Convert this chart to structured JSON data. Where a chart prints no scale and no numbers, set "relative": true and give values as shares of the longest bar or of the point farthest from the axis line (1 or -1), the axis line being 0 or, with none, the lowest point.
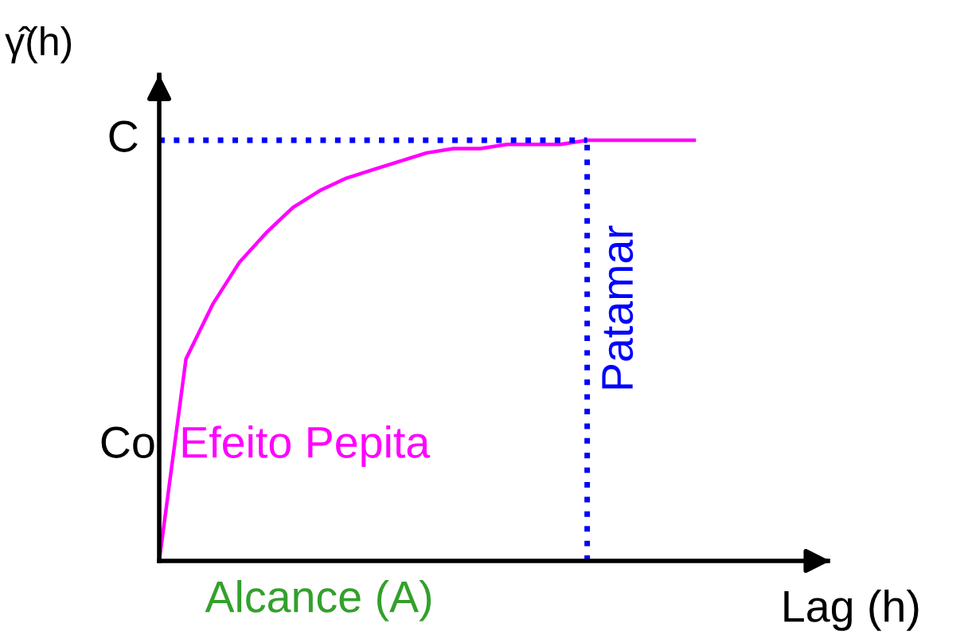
{
  "chart_data": {
    "type": "line",
    "relative": true,
    "ylabel": "γ̂(h)",
    "xlabel": "Lag (h)",
    "categories": [
      null,
      null,
      null,
      null,
      null,
      null,
      null,
      null,
      null,
      null,
      null,
      null,
      null,
      null,
      null,
      null,
      null,
      null,
      null,
      null,
      null
    ],
    "series": [
      {
        "color": "#ff00ff",
        "values": [
          0,
          0.48,
          0.61,
          0.71,
          0.78,
          0.84,
          0.88,
          0.91,
          0.93,
          0.95,
          0.97,
          0.98,
          0.98,
          0.99,
          0.99,
          0.99,
          1.0,
          1.0,
          1.0,
          1.0,
          1.0
        ]
      }
    ],
    "ref_lines": [
      {
        "axis": "y",
        "value": 1.0,
        "label": "C",
        "color": "#0000ff",
        "line_style": "dotted"
      }
    ],
    "annotations": [
      "Co",
      "Efeito Pepita",
      "Alcance (A)",
      "Patamar"
    ],
    "legend": false,
    "marker": "none",
    "line_style": "solid"
  }
}
